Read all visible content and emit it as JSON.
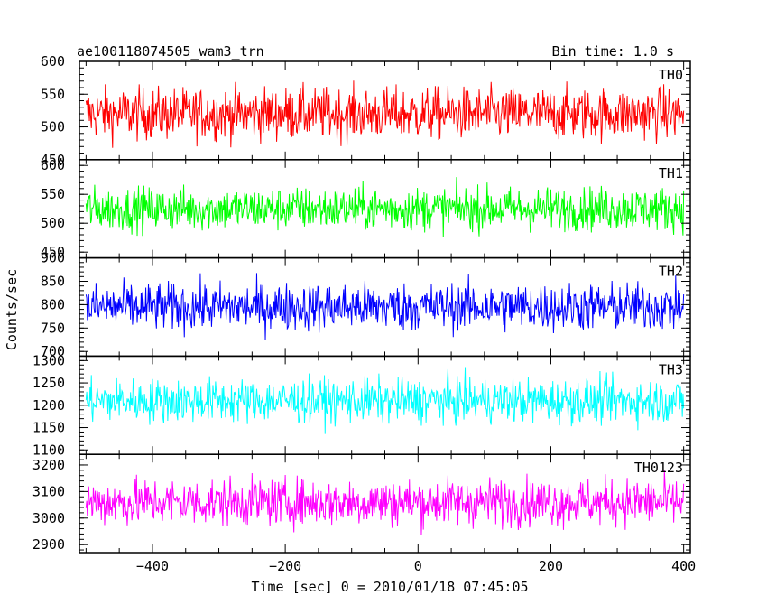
{
  "header": {
    "title": "ae100118074505_wam3_trn",
    "bin_time": "Bin time: 1.0 s"
  },
  "chart_data": {
    "type": "line",
    "ylabel": "Counts/sec",
    "xlabel": "Time [sec] 0 = 2010/01/18 07:45:05",
    "xlim": [
      -510,
      410
    ],
    "x_ticks": [
      -400,
      -200,
      0,
      200,
      400
    ],
    "x_tick_labels": [
      "−400",
      "−200",
      "0",
      "200",
      "400"
    ],
    "x_range": [
      -500,
      400
    ],
    "x_step": 1,
    "panels": [
      {
        "name": "TH0",
        "color": "#ff0000",
        "ylim": [
          450,
          600
        ],
        "ticks": [
          450,
          500,
          550,
          600
        ],
        "mean": 520,
        "amplitude": 40
      },
      {
        "name": "TH1",
        "color": "#00ff00",
        "ylim": [
          440,
          610
        ],
        "ticks": [
          450,
          500,
          550,
          600
        ],
        "mean": 525,
        "amplitude": 38
      },
      {
        "name": "TH2",
        "color": "#0000ff",
        "ylim": [
          690,
          900
        ],
        "ticks": [
          700,
          750,
          800,
          850,
          900
        ],
        "mean": 795,
        "amplitude": 52
      },
      {
        "name": "TH3",
        "color": "#00ffff",
        "ylim": [
          1090,
          1310
        ],
        "ticks": [
          1100,
          1150,
          1200,
          1250,
          1300
        ],
        "mean": 1210,
        "amplitude": 50
      },
      {
        "name": "TH0123",
        "color": "#ff00ff",
        "ylim": [
          2870,
          3240
        ],
        "ticks": [
          2900,
          3000,
          3100,
          3200
        ],
        "mean": 3060,
        "amplitude": 90
      }
    ]
  }
}
